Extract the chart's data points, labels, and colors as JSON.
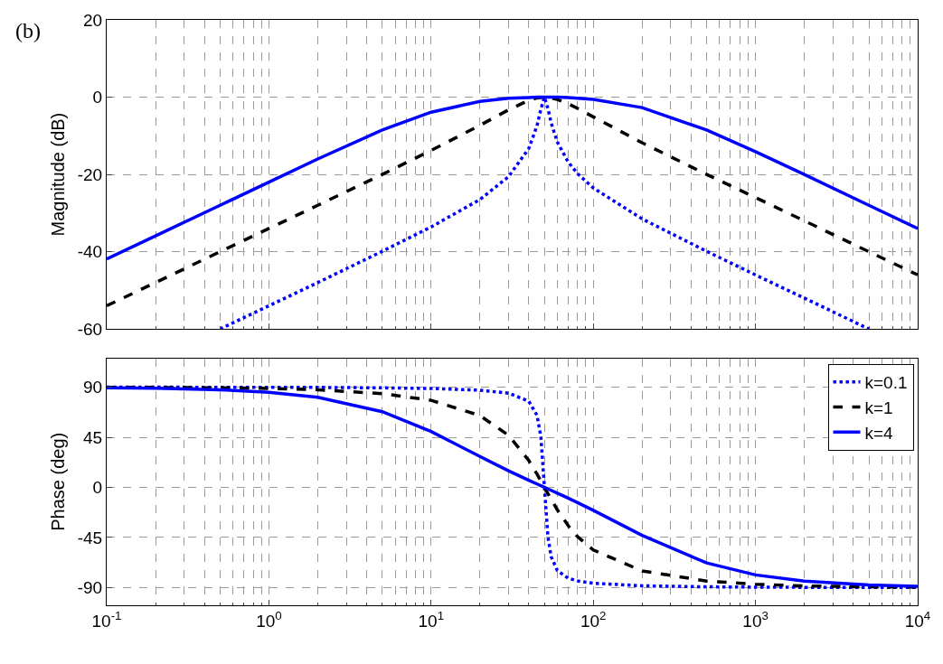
{
  "chart_data": [
    {
      "type": "line",
      "ylabel": "Magnitude (dB)",
      "annotations": [
        "(b)"
      ],
      "log": "x",
      "grid": true,
      "legend": false,
      "tick_labels": "y",
      "x": [
        0.1,
        0.2,
        0.5,
        1,
        2,
        5,
        10,
        20,
        30,
        40,
        45,
        47.5,
        50,
        52.5,
        55,
        60,
        70,
        80,
        100,
        200,
        500,
        1000,
        2000,
        5000,
        10000
      ],
      "xlim": [
        0.1,
        10000
      ],
      "xticks": [
        {
          "value": 0.1,
          "label": "10$^{-1}$"
        },
        {
          "value": 1,
          "label": "10$^{0}$"
        },
        {
          "value": 10,
          "label": "10$^{1}$"
        },
        {
          "value": 100,
          "label": "10$^{2}$"
        },
        {
          "value": 1000,
          "label": "10$^{3}$"
        },
        {
          "value": 10000,
          "label": "10$^{4}$"
        }
      ],
      "ylim": [
        -60,
        20
      ],
      "yticks": [
        -60,
        -40,
        -20,
        0,
        20
      ],
      "series": [
        {
          "color": "#0000ff",
          "line_style": "dotted",
          "values": [
            null,
            null,
            -60.0,
            -54.0,
            -48.0,
            -39.9,
            -33.6,
            -26.5,
            -20.6,
            -13.3,
            -7.4,
            -3.1,
            0,
            -2.9,
            -6.7,
            -11.6,
            -16.8,
            -19.8,
            -23.5,
            -31.5,
            -39.9,
            -46.0,
            -52.0,
            -60.0,
            null
          ]
        },
        {
          "color": "#000000",
          "line_style": "dashed",
          "values": [
            -54.0,
            -48.0,
            -40.0,
            -34.0,
            -28.0,
            -20.0,
            -13.8,
            -7.3,
            -3.3,
            -0.8,
            -0.2,
            -0.1,
            0,
            -0.1,
            -0.2,
            -0.6,
            -1.7,
            -2.9,
            -5.1,
            -11.8,
            -20.0,
            -26.0,
            -32.0,
            -40.0,
            -46.0
          ]
        },
        {
          "color": "#0000ff",
          "line_style": "solid",
          "values": [
            -41.9,
            -35.9,
            -28.0,
            -22.0,
            -16.0,
            -8.5,
            -3.9,
            -1.1,
            -0.3,
            -0.1,
            0,
            0,
            0,
            0,
            0,
            0,
            -0.1,
            -0.3,
            -0.6,
            -2.7,
            -8.5,
            -14.1,
            -20.0,
            -28.0,
            -34.0
          ]
        }
      ]
    },
    {
      "type": "line",
      "ylabel": "Phase (deg)",
      "log": "x",
      "grid": true,
      "legend": "top right",
      "x": [
        0.1,
        0.2,
        0.5,
        1,
        2,
        5,
        10,
        20,
        30,
        40,
        45,
        47.5,
        50,
        52.5,
        55,
        60,
        70,
        80,
        100,
        200,
        500,
        1000,
        2000,
        5000,
        10000
      ],
      "xlim": [
        0.1,
        10000
      ],
      "xticks": [
        {
          "value": 0.1,
          "label": "10$^{-1}$"
        },
        {
          "value": 1,
          "label": "10$^{0}$"
        },
        {
          "value": 10,
          "label": "10$^{1}$"
        },
        {
          "value": 100,
          "label": "10$^{2}$"
        },
        {
          "value": 1000,
          "label": "10$^{3}$"
        },
        {
          "value": 10000,
          "label": "10$^{4}$"
        }
      ],
      "ylim": [
        -106,
        116
      ],
      "yticks": [
        -90,
        -45,
        0,
        45,
        90
      ],
      "series": [
        {
          "name": "k=0.1",
          "color": "#0000ff",
          "line_style": "dotted",
          "values": [
            90,
            90,
            89.9,
            89.9,
            89.8,
            89.4,
            88.8,
            87.3,
            84.6,
            77.5,
            64.7,
            45.7,
            0,
            -44.3,
            -62.4,
            -74.7,
            -81.7,
            -84.1,
            -86.2,
            -88.5,
            -89.4,
            -89.7,
            -89.9,
            -89.9,
            -90
          ]
        },
        {
          "name": "k=1",
          "color": "#000000",
          "line_style": "dashed",
          "values": [
            89.9,
            89.8,
            89.4,
            88.9,
            87.7,
            84.2,
            78.2,
            64.5,
            46.8,
            24.2,
            11.9,
            5.9,
            0,
            -5.6,
            -10.8,
            -20.1,
            -34.4,
            -44.3,
            -56.3,
            -75.1,
            -84.2,
            -87.1,
            -88.6,
            -89.4,
            -89.7
          ]
        },
        {
          "name": "k=4",
          "color": "#0000ff",
          "line_style": "solid",
          "values": [
            89.5,
            89.1,
            87.7,
            85.4,
            80.9,
            68.0,
            50.2,
            27.7,
            14.9,
            6.4,
            3.0,
            1.5,
            0,
            -1.5,
            -2.7,
            -5.2,
            -9.7,
            -13.7,
            -20.6,
            -43.2,
            -68.0,
            -78.7,
            -84.3,
            -87.7,
            -88.9
          ]
        }
      ]
    }
  ]
}
